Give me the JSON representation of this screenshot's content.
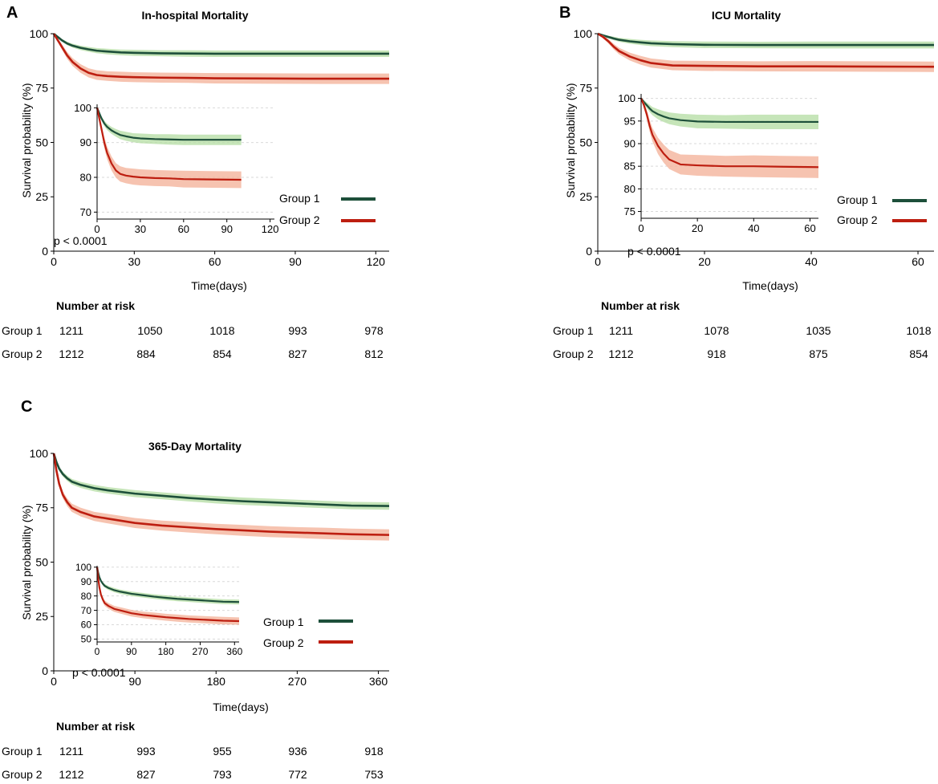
{
  "colors": {
    "group1_line": "#1d4f3a",
    "group1_band": "#b8dfa8",
    "group2_line": "#bd1e10",
    "group2_band": "#f4b49c",
    "grid": "#d9d9d9"
  },
  "panels": [
    {
      "label": "A",
      "title": "In-hospital Mortality",
      "ylabel": "Survival probability (%)",
      "xlabel": "Time(days)",
      "pvalue": "p < 0.0001",
      "legend": [
        "Group 1",
        "Group 2"
      ],
      "risk_title": "Number at risk",
      "risk_table": [
        {
          "group": "Group 1",
          "values": [
            "1211",
            "1050",
            "1018",
            "993",
            "978"
          ]
        },
        {
          "group": "Group 2",
          "values": [
            "1212",
            "884",
            "854",
            "827",
            "812"
          ]
        }
      ]
    },
    {
      "label": "B",
      "title": "ICU Mortality",
      "ylabel": "Survival probability (%)",
      "xlabel": "Time(days)",
      "pvalue": "p < 0.0001",
      "legend": [
        "Group 1",
        "Group 2"
      ],
      "risk_title": "Number at risk",
      "risk_table": [
        {
          "group": "Group 1",
          "values": [
            "1211",
            "1078",
            "1035",
            "1018"
          ]
        },
        {
          "group": "Group 2",
          "values": [
            "1212",
            "918",
            "875",
            "854"
          ]
        }
      ]
    },
    {
      "label": "C",
      "title": "365-Day Mortality",
      "ylabel": "Survival probability (%)",
      "xlabel": "Time(days)",
      "pvalue": "p < 0.0001",
      "legend": [
        "Group 1",
        "Group 2"
      ],
      "risk_title": "Number at risk",
      "risk_table": [
        {
          "group": "Group 1",
          "values": [
            "1211",
            "993",
            "955",
            "936",
            "918"
          ]
        },
        {
          "group": "Group 2",
          "values": [
            "1212",
            "827",
            "793",
            "772",
            "753"
          ]
        }
      ]
    }
  ],
  "chart_data": [
    {
      "type": "line",
      "panel": "A",
      "title": "In-hospital Mortality",
      "xlabel": "Time(days)",
      "ylabel": "Survival probability (%)",
      "xlim": [
        0,
        125
      ],
      "ylim": [
        0,
        100
      ],
      "xticks": [
        0,
        30,
        60,
        90,
        120
      ],
      "yticks": [
        0,
        25,
        50,
        75,
        100
      ],
      "series": [
        {
          "name": "Group 1",
          "x": [
            0,
            1,
            2,
            3,
            5,
            7,
            10,
            13,
            16,
            20,
            25,
            30,
            40,
            50,
            60,
            80,
            100,
            125
          ],
          "y": [
            100,
            99,
            98,
            97,
            95.5,
            94.5,
            93.5,
            92.8,
            92.2,
            91.8,
            91.4,
            91.2,
            91.0,
            90.9,
            90.8,
            90.8,
            90.8,
            90.8
          ],
          "ci_half": [
            0,
            0.3,
            0.5,
            0.6,
            0.8,
            0.9,
            1,
            1.1,
            1.2,
            1.3,
            1.3,
            1.4,
            1.4,
            1.5,
            1.5,
            1.5,
            1.5,
            1.5
          ]
        },
        {
          "name": "Group 2",
          "x": [
            0,
            1,
            2,
            3,
            5,
            7,
            10,
            13,
            16,
            20,
            25,
            30,
            40,
            50,
            60,
            80,
            100,
            125
          ],
          "y": [
            100,
            98,
            96,
            94,
            90,
            87,
            84,
            82,
            81,
            80.5,
            80.2,
            80,
            79.8,
            79.7,
            79.5,
            79.4,
            79.3,
            79.3
          ],
          "ci_half": [
            0,
            0.6,
            0.9,
            1.2,
            1.6,
            1.8,
            2,
            2.1,
            2.2,
            2.2,
            2.3,
            2.3,
            2.3,
            2.3,
            2.4,
            2.4,
            2.4,
            2.4
          ]
        }
      ],
      "inset": {
        "xlim": [
          0,
          123
        ],
        "ylim": [
          68,
          101
        ],
        "xticks": [
          0,
          30,
          60,
          90,
          120
        ],
        "yticks": [
          70,
          80,
          90,
          100
        ]
      },
      "pvalue": "p < 0.0001",
      "legend": [
        "Group 1",
        "Group 2"
      ]
    },
    {
      "type": "line",
      "panel": "B",
      "title": "ICU Mortality",
      "xlabel": "Time(days)",
      "ylabel": "Survival probability (%)",
      "xlim": [
        0,
        63
      ],
      "ylim": [
        0,
        100
      ],
      "xticks": [
        0,
        20,
        40,
        60
      ],
      "yticks": [
        0,
        25,
        50,
        75,
        100
      ],
      "series": [
        {
          "name": "Group 1",
          "x": [
            0,
            1,
            2,
            3,
            4,
            6,
            8,
            10,
            14,
            20,
            30,
            40,
            50,
            63
          ],
          "y": [
            100,
            99.2,
            98.5,
            97.8,
            97.2,
            96.5,
            96,
            95.6,
            95.2,
            94.9,
            94.8,
            94.8,
            94.8,
            94.8
          ],
          "ci_half": [
            0,
            0.4,
            0.6,
            0.8,
            0.9,
            1.1,
            1.2,
            1.3,
            1.4,
            1.5,
            1.5,
            1.6,
            1.6,
            1.6
          ]
        },
        {
          "name": "Group 2",
          "x": [
            0,
            1,
            2,
            3,
            4,
            6,
            8,
            10,
            14,
            20,
            30,
            40,
            50,
            63
          ],
          "y": [
            100,
            98.5,
            96.5,
            94,
            92,
            89.5,
            87.8,
            86.5,
            85.4,
            85.2,
            85,
            85,
            84.9,
            84.8
          ],
          "ci_half": [
            0,
            0.7,
            1,
            1.3,
            1.5,
            1.8,
            2,
            2.1,
            2.2,
            2.3,
            2.3,
            2.4,
            2.4,
            2.4
          ]
        }
      ],
      "inset": {
        "xlim": [
          0,
          63
        ],
        "ylim": [
          73.5,
          101
        ],
        "xticks": [
          0,
          20,
          40,
          60
        ],
        "yticks": [
          75,
          80,
          85,
          90,
          95,
          100
        ]
      },
      "pvalue": "p < 0.0001",
      "legend": [
        "Group 1",
        "Group 2"
      ]
    },
    {
      "type": "line",
      "panel": "C",
      "title": "365-Day Mortality",
      "xlabel": "Time(days)",
      "ylabel": "Survival probability (%)",
      "xlim": [
        0,
        372
      ],
      "ylim": [
        0,
        100
      ],
      "xticks": [
        0,
        90,
        180,
        270,
        360
      ],
      "yticks": [
        0,
        25,
        50,
        75,
        100
      ],
      "series": [
        {
          "name": "Group 1",
          "x": [
            0,
            3,
            6,
            10,
            15,
            20,
            30,
            45,
            60,
            90,
            120,
            150,
            180,
            210,
            240,
            270,
            300,
            330,
            372
          ],
          "y": [
            100,
            96,
            93,
            90.5,
            88.5,
            87,
            85.5,
            84,
            83,
            81.5,
            80.5,
            79.5,
            78.7,
            78,
            77.5,
            77,
            76.5,
            76,
            75.8
          ],
          "ci_half": [
            0,
            0.6,
            0.9,
            1.1,
            1.2,
            1.3,
            1.4,
            1.5,
            1.5,
            1.6,
            1.6,
            1.6,
            1.7,
            1.7,
            1.7,
            1.7,
            1.7,
            1.7,
            1.7
          ]
        },
        {
          "name": "Group 2",
          "x": [
            0,
            3,
            6,
            10,
            15,
            20,
            30,
            45,
            60,
            90,
            120,
            150,
            180,
            210,
            240,
            270,
            300,
            330,
            372
          ],
          "y": [
            100,
            92,
            86,
            81,
            77.5,
            75,
            73,
            71,
            70,
            68,
            66.8,
            66,
            65.2,
            64.6,
            64,
            63.6,
            63.2,
            62.8,
            62.5
          ],
          "ci_half": [
            0,
            0.9,
            1.3,
            1.6,
            1.8,
            1.9,
            2,
            2.1,
            2.2,
            2.3,
            2.3,
            2.4,
            2.4,
            2.5,
            2.5,
            2.5,
            2.6,
            2.6,
            2.6
          ]
        }
      ],
      "inset": {
        "xlim": [
          0,
          372
        ],
        "ylim": [
          48,
          101
        ],
        "xticks": [
          0,
          90,
          180,
          270,
          360
        ],
        "yticks": [
          50,
          60,
          70,
          80,
          90,
          100
        ]
      },
      "pvalue": "p < 0.0001",
      "legend": [
        "Group 1",
        "Group 2"
      ]
    }
  ]
}
